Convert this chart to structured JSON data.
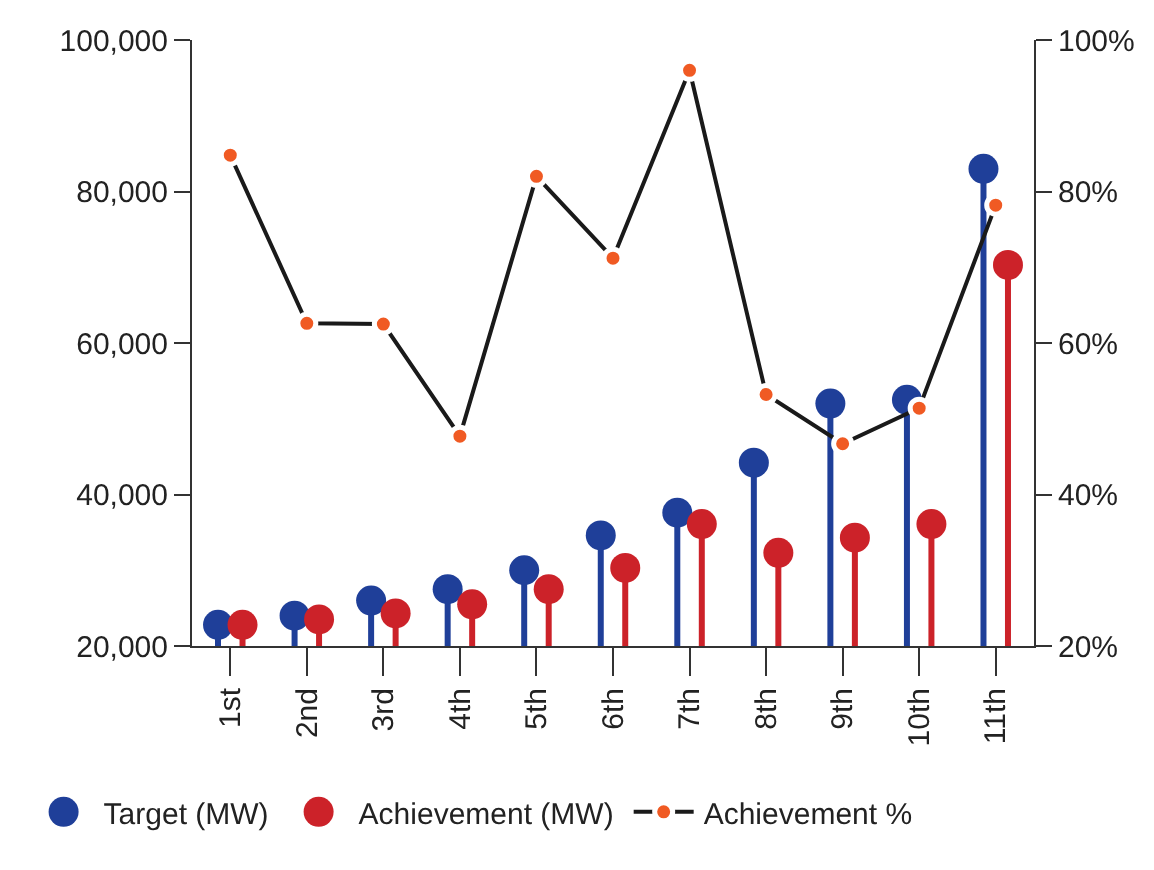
{
  "chart_data": {
    "type": "lollipop",
    "categories": [
      "1st",
      "2nd",
      "3rd",
      "4th",
      "5th",
      "6th",
      "7th",
      "8th",
      "9th",
      "10th",
      "11th"
    ],
    "series": [
      {
        "name": "Target (MW)",
        "color": "#1f3f99",
        "values": [
          22800,
          24000,
          26000,
          27500,
          30000,
          34600,
          37600,
          44200,
          52000,
          52500,
          83000
        ]
      },
      {
        "name": "Achievement (MW)",
        "color": "#cc2229",
        "values": [
          22800,
          23500,
          24300,
          25500,
          27500,
          30300,
          36100,
          32300,
          34300,
          36100,
          70300
        ]
      },
      {
        "name": "Achievement %",
        "type": "line",
        "axis": "y2",
        "color": "#1a1a1a",
        "marker": "circle",
        "values": [
          84.8,
          62.6,
          62.5,
          47.7,
          82,
          71.2,
          96,
          53.2,
          46.7,
          51.4,
          78.2
        ]
      }
    ],
    "ylim": [
      20000,
      100000
    ],
    "yticks": [
      {
        "value": 20000,
        "label": "20,000"
      },
      {
        "value": 40000,
        "label": "40,000"
      },
      {
        "value": 60000,
        "label": "60,000"
      },
      {
        "value": 80000,
        "label": "80,000"
      },
      {
        "value": 100000,
        "label": "100,000"
      }
    ],
    "y2lim": [
      20,
      100
    ],
    "y2ticks": [
      {
        "value": 20,
        "label": "20%"
      },
      {
        "value": 40,
        "label": "40%"
      },
      {
        "value": 60,
        "label": "60%"
      },
      {
        "value": 80,
        "label": "80%"
      },
      {
        "value": 100,
        "label": "100%"
      }
    ],
    "grid": false,
    "legend": "bottom"
  }
}
